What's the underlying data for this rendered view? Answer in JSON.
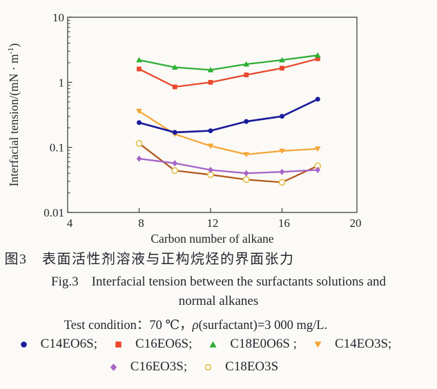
{
  "figure": {
    "caption_cn": "图3　表面活性剂溶液与正构烷烃的界面张力",
    "caption_en1": "Fig.3　Interfacial tension between the surfactants solutions and",
    "caption_en2": "normal alkanes",
    "test_prefix": "Test condition：70 ℃，",
    "test_rho": "ρ",
    "test_suffix": "(surfactant)=3 000 mg/L."
  },
  "legend": {
    "rows": [
      [
        {
          "marker": "circle",
          "color": "#1b1b9c",
          "label": "C14EO6S;"
        },
        {
          "marker": "square",
          "color": "#ea482d",
          "label": "C16EO6S;"
        },
        {
          "marker": "triangle-up",
          "color": "#2eae35",
          "label": "C18E0O6S ;"
        },
        {
          "marker": "triangle-down",
          "color": "#f4a636",
          "label": "C14EO3S;"
        }
      ],
      [
        {
          "marker": "diamond",
          "color": "#a565c8",
          "label": "C16EO3S;"
        },
        {
          "marker": "circle-open",
          "color": "#e2bf45",
          "label": "C18EO3S"
        }
      ]
    ]
  },
  "chart_data": {
    "type": "line",
    "title": "",
    "xlabel": "Carbon number of alkane",
    "ylabel": "Interfacial tension/(mN · m⁻¹)",
    "ylabel_main": "Interfacial tension/(mN · m",
    "ylabel_sup": "-1",
    "ylabel_close": ")",
    "xlim": [
      4,
      20
    ],
    "ylim": [
      0.01,
      10
    ],
    "yscale": "log",
    "grid": false,
    "xticks": [
      4,
      8,
      12,
      16,
      20
    ],
    "yticks": [
      10,
      1,
      0.1,
      0.01
    ],
    "ytick_labels": [
      "10",
      "1",
      "0.1",
      "0.01"
    ],
    "x_values": [
      8,
      10,
      12,
      14,
      16,
      18
    ],
    "series": [
      {
        "name": "C14EO6S",
        "marker": "circle",
        "color": "#1b1b9c",
        "values": [
          0.24,
          0.17,
          0.18,
          0.25,
          0.3,
          0.55
        ]
      },
      {
        "name": "C16EO6S",
        "marker": "square",
        "color": "#ea482d",
        "values": [
          1.6,
          0.85,
          1.0,
          1.3,
          1.65,
          2.3
        ]
      },
      {
        "name": "C18E0O6S",
        "marker": "triangle-up",
        "color": "#2eae35",
        "values": [
          2.2,
          1.7,
          1.55,
          1.9,
          2.2,
          2.6
        ]
      },
      {
        "name": "C14EO3S",
        "marker": "triangle-down",
        "color": "#f4a636",
        "values": [
          0.36,
          0.16,
          0.105,
          0.078,
          0.088,
          0.095
        ]
      },
      {
        "name": "C16EO3S",
        "marker": "diamond",
        "color": "#a565c8",
        "values": [
          0.067,
          0.057,
          0.045,
          0.04,
          0.042,
          0.045
        ]
      },
      {
        "name": "C18EO3S",
        "marker": "circle-open",
        "color": "#b35a1f",
        "marker_color": "#e2bf45",
        "values": [
          0.115,
          0.044,
          0.038,
          0.032,
          0.029,
          0.052
        ]
      }
    ],
    "draw_order": [
      3,
      5,
      4,
      0,
      1,
      2
    ]
  }
}
